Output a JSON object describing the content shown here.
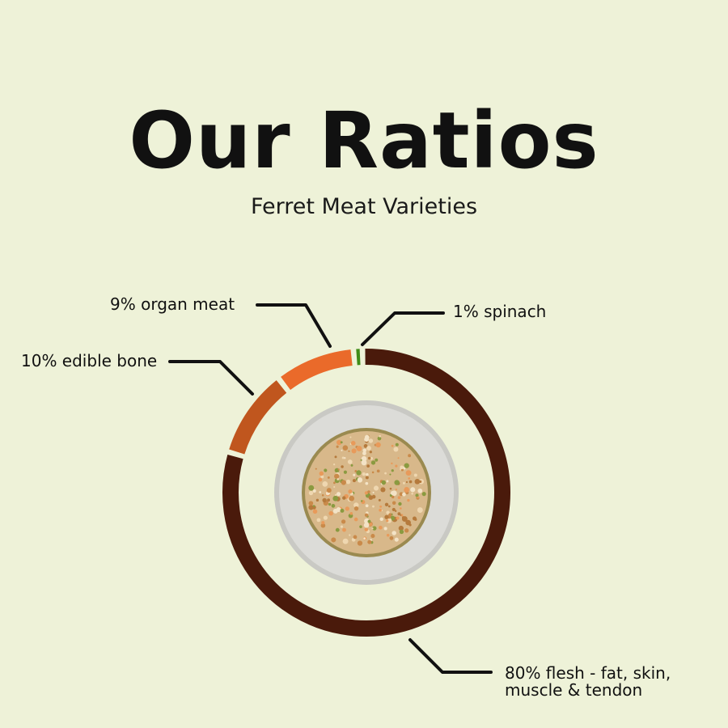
{
  "header": {
    "title": "Our Ratios",
    "subtitle": "Ferret Meat Varieties"
  },
  "chart_data": {
    "type": "pie",
    "variant": "donut",
    "unit": "%",
    "series": [
      {
        "label": "80% flesh - fat, skin,",
        "label_line2": "muscle & tendon",
        "value": 80,
        "color": "#4a1a0b"
      },
      {
        "label": "10% edible bone",
        "value": 10,
        "color": "#c0561e"
      },
      {
        "label": "9% organ meat",
        "value": 9,
        "color": "#ea6a2a"
      },
      {
        "label": "1% spinach",
        "value": 1,
        "color": "#3f8c17"
      }
    ],
    "center_image": "bowl-of-ferret-food",
    "legend": "none"
  }
}
